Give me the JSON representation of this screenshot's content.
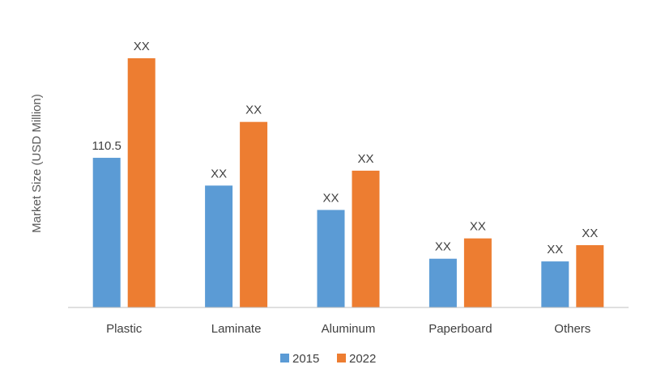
{
  "chart_data": {
    "type": "bar",
    "title": "",
    "xlabel": "",
    "ylabel": "Market Size (USD Million)",
    "categories": [
      "Plastic",
      "Laminate",
      "Aluminum",
      "Paperboard",
      "Others"
    ],
    "series": [
      {
        "name": "2015",
        "color": "#5B9BD5",
        "values": [
          110.5,
          90,
          72,
          36,
          34
        ],
        "labels": [
          "110.5",
          "XX",
          "XX",
          "XX",
          "XX"
        ]
      },
      {
        "name": "2022",
        "color": "#ED7D31",
        "values": [
          184,
          137,
          101,
          51,
          46
        ],
        "labels": [
          "XX",
          "XX",
          "XX",
          "XX",
          "XX"
        ]
      }
    ],
    "ylim": [
      0,
      184
    ],
    "grid": false,
    "legend_position": "bottom",
    "axis_color": "#bfbfbf"
  }
}
